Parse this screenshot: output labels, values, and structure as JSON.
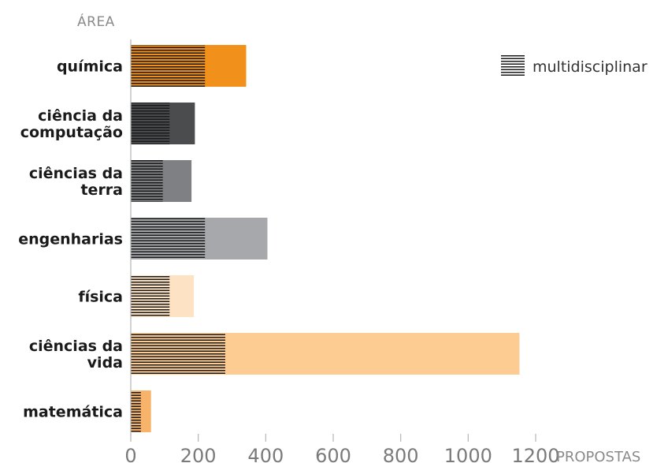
{
  "chart_data": {
    "type": "bar",
    "orientation": "horizontal",
    "stacked": true,
    "y_axis_title": "ÁREA",
    "x_axis_title": "PROPOSTAS",
    "xlim": [
      0,
      1200
    ],
    "xticks": [
      "0",
      "200",
      "400",
      "600",
      "800",
      "1000",
      "1200"
    ],
    "categories": [
      {
        "lines": [
          "química"
        ],
        "multidisciplinar": 220,
        "total": 342,
        "color": "#f1911c"
      },
      {
        "lines": [
          "ciência da",
          "computação"
        ],
        "multidisciplinar": 115,
        "total": 190,
        "color": "#4b4c4e"
      },
      {
        "lines": [
          "ciências da",
          "terra"
        ],
        "multidisciplinar": 95,
        "total": 180,
        "color": "#7f8083"
      },
      {
        "lines": [
          "engenharias"
        ],
        "multidisciplinar": 220,
        "total": 405,
        "color": "#a7a8ab"
      },
      {
        "lines": [
          "física"
        ],
        "multidisciplinar": 115,
        "total": 187,
        "color": "#fde2c4"
      },
      {
        "lines": [
          "ciências da",
          "vida"
        ],
        "multidisciplinar": 280,
        "total": 1152,
        "color": "#fdcc93"
      },
      {
        "lines": [
          "matemática"
        ],
        "multidisciplinar": 30,
        "total": 60,
        "color": "#f7b36a"
      }
    ],
    "legend": {
      "label": "multidisciplinar",
      "position": "top-right"
    },
    "grid": false
  }
}
